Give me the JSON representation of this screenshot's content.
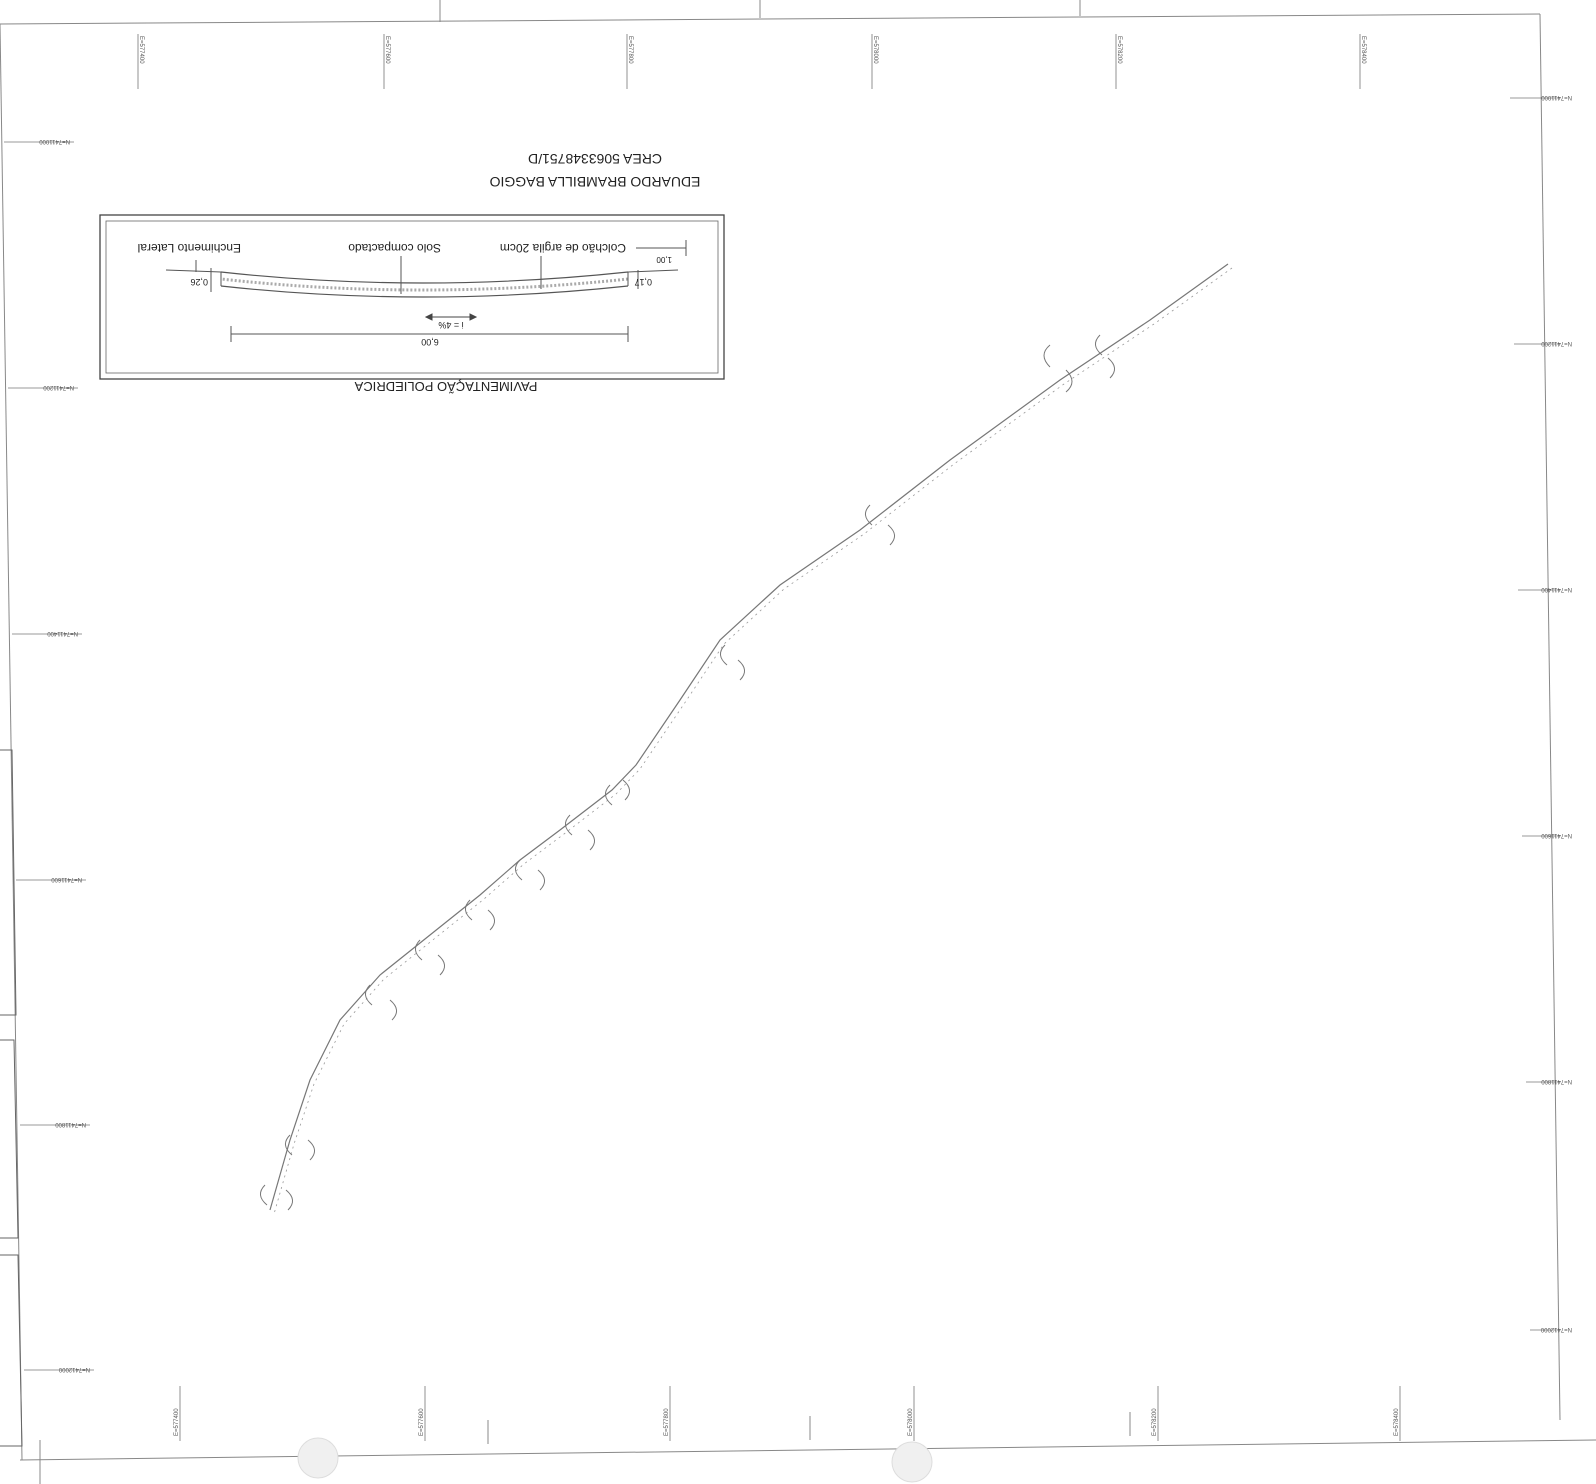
{
  "sheet": {
    "orientation": "upside-down",
    "section_title": "PAVIMENTAÇÃO POLIEDRICA",
    "engineer_name": "EDUARDO BRAMBILLA BAGGIO",
    "engineer_crea": "CREA  5063348751/D"
  },
  "cross_section": {
    "labels": {
      "lateral_fill": "Enchimento Lateral",
      "compacted_soil": "Solo compactado",
      "clay_mattress": "Colchão de argila 20cm"
    },
    "dimensions": {
      "width": "6,00",
      "slope": "i = 4%",
      "left_height": "0,26",
      "right_height": "0,17",
      "shoulder": "1,00"
    }
  },
  "grid": {
    "easting_labels": [
      "E=577400",
      "E=577600",
      "E=577800",
      "E=578000",
      "E=578200",
      "E=578400"
    ],
    "northing_labels": [
      "N=7411000",
      "N=7411200",
      "N=7411400",
      "N=7411600",
      "N=7411800",
      "N=7412000"
    ]
  }
}
